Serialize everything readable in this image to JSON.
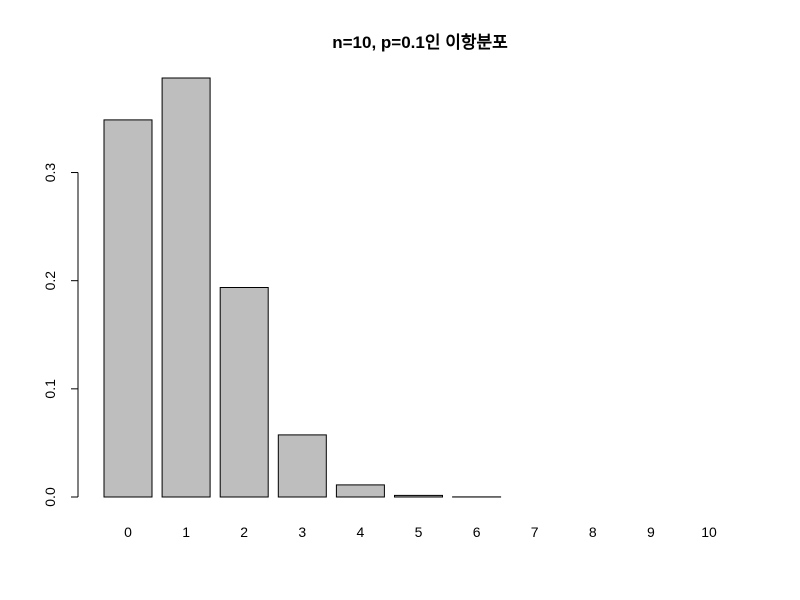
{
  "chart_data": {
    "type": "bar",
    "title": "n=10, p=0.1인 이항분포",
    "xlabel": "",
    "ylabel": "",
    "categories": [
      "0",
      "1",
      "2",
      "3",
      "4",
      "5",
      "6",
      "7",
      "8",
      "9",
      "10"
    ],
    "values": [
      0.3487,
      0.3874,
      0.1937,
      0.0574,
      0.0112,
      0.0015,
      0.0001,
      0.0,
      0.0,
      0.0,
      0.0
    ],
    "ylim": [
      0,
      0.3874
    ],
    "yticks": [
      "0.0",
      "0.1",
      "0.2",
      "0.3"
    ],
    "grid": false,
    "bar_color": "#bebebe",
    "edge_color": "#000000"
  }
}
